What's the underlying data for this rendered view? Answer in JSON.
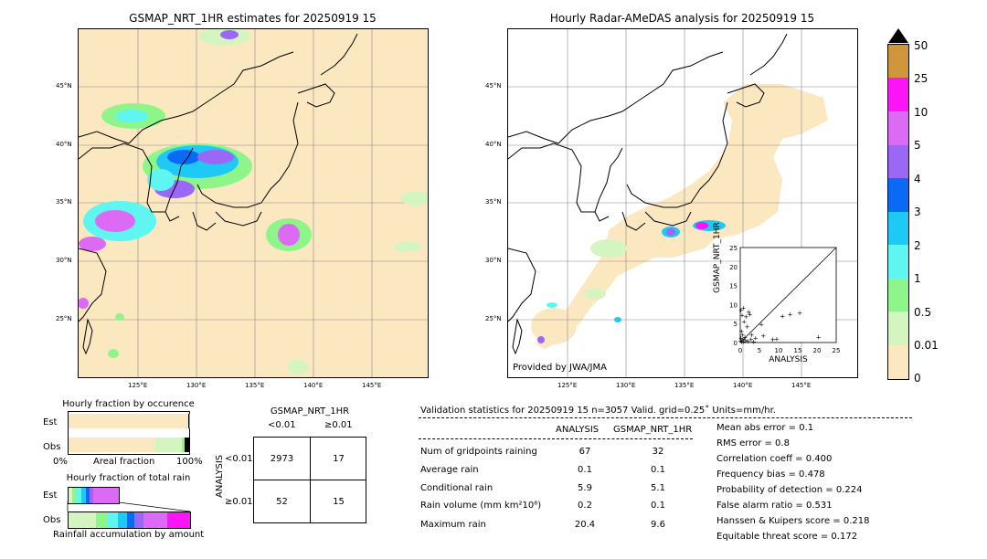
{
  "colors": {
    "land": "#fce8c0",
    "c001": "#fce8c0",
    "c05": "#d4f5c0",
    "c1": "#8ef58a",
    "c2": "#5ff5f0",
    "c3": "#1ecaf5",
    "c4": "#0a6af5",
    "c5": "#9a68f5",
    "c10": "#dc6af5",
    "c25": "#fb14f5",
    "c50": "#d0963c"
  },
  "map_left": {
    "title": "GSMAP_NRT_1HR estimates for 20250919 15",
    "lat_labels": [
      "45°N",
      "40°N",
      "35°N",
      "30°N",
      "25°N"
    ],
    "lon_labels": [
      "125°E",
      "130°E",
      "135°E",
      "140°E",
      "145°E"
    ]
  },
  "map_right": {
    "title": "Hourly Radar-AMeDAS analysis for 20250919 15",
    "lat_labels": [
      "45°N",
      "40°N",
      "35°N",
      "30°N",
      "25°N"
    ],
    "lon_labels": [
      "125°E",
      "130°E",
      "135°E",
      "140°E",
      "145°E"
    ],
    "credit": "Provided by JWA/JMA"
  },
  "colorbar": {
    "labels": [
      "50",
      "25",
      "10",
      "5",
      "4",
      "3",
      "2",
      "1",
      "0.5",
      "0.01",
      "0"
    ]
  },
  "chart_data": [
    {
      "type": "scatter",
      "xlabel": "ANALYSIS",
      "ylabel": "GSMAP_NRT_1HR",
      "xlim": [
        0,
        25
      ],
      "ylim": [
        0,
        25
      ],
      "xticks": [
        "0",
        "5",
        "10",
        "15",
        "20",
        "25"
      ],
      "yticks": [
        "0",
        "5",
        "10",
        "15",
        "20",
        "25"
      ],
      "points": [
        [
          0.2,
          8.5
        ],
        [
          0.5,
          7.2
        ],
        [
          0.8,
          9.1
        ],
        [
          1.0,
          5.5
        ],
        [
          1.5,
          6.8
        ],
        [
          1.8,
          4.2
        ],
        [
          2.2,
          8.0
        ],
        [
          2.5,
          7.5
        ],
        [
          0.3,
          3.0
        ],
        [
          0.6,
          2.1
        ],
        [
          1.2,
          1.5
        ],
        [
          3.0,
          2.0
        ],
        [
          4.0,
          1.2
        ],
        [
          5.5,
          4.8
        ],
        [
          6.0,
          1.8
        ],
        [
          8.5,
          0.8
        ],
        [
          9.5,
          1.0
        ],
        [
          11.0,
          7.0
        ],
        [
          13.0,
          7.5
        ],
        [
          15.5,
          7.8
        ],
        [
          20.4,
          1.5
        ],
        [
          0.1,
          0.5
        ],
        [
          0.4,
          0.2
        ],
        [
          0.9,
          0.3
        ],
        [
          1.4,
          0.6
        ],
        [
          2.0,
          0.4
        ],
        [
          2.8,
          0.9
        ],
        [
          3.5,
          0.3
        ],
        [
          0.2,
          1.2
        ],
        [
          0.7,
          0.8
        ]
      ]
    },
    {
      "type": "bar",
      "title": "Hourly fraction by occurence",
      "categories": [
        "Est",
        "Obs"
      ],
      "xticks": [
        "0%",
        "100%"
      ],
      "xlabel": "Areal fraction",
      "series": [
        {
          "name": "Est",
          "segments": [
            0.983,
            0.011,
            0.004,
            0.002
          ]
        },
        {
          "name": "Obs",
          "segments": [
            0.954,
            0.036,
            0.006,
            0.004
          ]
        }
      ]
    },
    {
      "type": "bar",
      "title": "Hourly fraction of total rain",
      "categories": [
        "Est",
        "Obs"
      ],
      "xlabel": "Rainfall accumulation by amount"
    }
  ],
  "occ_title": "Hourly fraction by occurence",
  "occ": {
    "rows": [
      "Est",
      "Obs"
    ],
    "x0": "0%",
    "x1": "100%",
    "xlabel": "Areal fraction"
  },
  "rain_title": "Hourly fraction of total rain",
  "rain": {
    "rows": [
      "Est",
      "Obs"
    ],
    "xlabel": "Rainfall accumulation by amount"
  },
  "contingency": {
    "title": "GSMAP_NRT_1HR",
    "col_lt": "<0.01",
    "col_ge": "≥0.01",
    "row_axis": "ANALYSIS",
    "row_lt": "<0.01",
    "row_ge": "≥0.01",
    "cells": [
      "2973",
      "17",
      "52",
      "15"
    ]
  },
  "validation": {
    "header": "Validation statistics for 20250919 15  n=3057 Valid. grid=0.25˚ Units=mm/hr.",
    "col_analysis": "ANALYSIS",
    "col_gsmap": "GSMAP_NRT_1HR",
    "rows": [
      {
        "label": "Num of gridpoints raining",
        "a": "67",
        "g": "32"
      },
      {
        "label": "Average rain",
        "a": "0.1",
        "g": "0.1"
      },
      {
        "label": "Conditional rain",
        "a": "5.9",
        "g": "5.1"
      },
      {
        "label": "Rain volume (mm km²10⁶)",
        "a": "0.2",
        "g": "0.1"
      },
      {
        "label": "Maximum rain",
        "a": "20.4",
        "g": "9.6"
      }
    ],
    "scores": [
      "Mean abs error =    0.1",
      "RMS error =    0.8",
      "Correlation coeff =  0.400",
      "Frequency bias =  0.478",
      "Probability of detection =  0.224",
      "False alarm ratio =  0.531",
      "Hanssen & Kuipers score =  0.218",
      "Equitable threat score =  0.172"
    ]
  }
}
